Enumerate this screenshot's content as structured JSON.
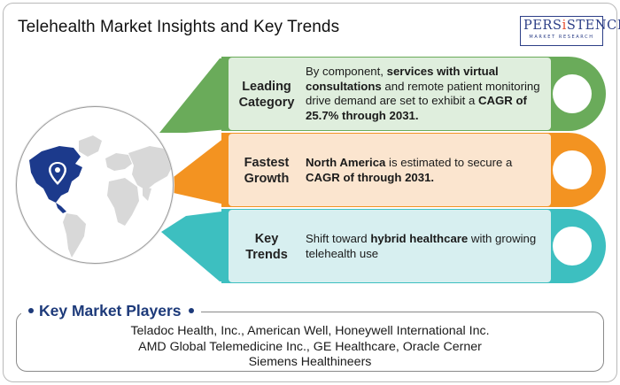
{
  "title": "Telehealth Market Insights and Key Trends",
  "logo": {
    "main_pre": "PERS",
    "main_i": "i",
    "main_post": "STENCE",
    "sub": "MARKET RESEARCH"
  },
  "colors": {
    "green": "#6aab5a",
    "green_bg": "#dfeedd",
    "orange": "#f39321",
    "orange_bg": "#fbe5cf",
    "teal": "#3dbfc0",
    "teal_bg": "#d7eff0",
    "navy": "#1d3a7a",
    "map_land": "#d8d8d8",
    "map_highlight": "#1c3a8c"
  },
  "globe": {
    "icon": "location-pin-icon",
    "highlight_region": "North America"
  },
  "sections": [
    {
      "label": "Leading Category",
      "label_line1": "Leading",
      "label_line2": "Category",
      "t1": "By component, ",
      "b1": "services with virtual consultations",
      "t2": " and remote patient monitoring drive demand are set to exhibit a ",
      "b2": "CAGR of 25.7% through 2031."
    },
    {
      "label": "Fastest Growth",
      "label_line1": "Fastest",
      "label_line2": "Growth",
      "b1": "North America",
      "t1": " is estimated to secure a ",
      "b2": "CAGR of through 2031."
    },
    {
      "label": "Key Trends",
      "label_line1": "Key",
      "label_line2": "Trends",
      "t1": "Shift toward ",
      "b1": "hybrid healthcare",
      "t2": " with growing telehealth use"
    }
  ],
  "key_players": {
    "title": "Key Market Players",
    "lines": [
      "Teladoc Health, Inc., American Well, Honeywell International Inc.",
      "AMD Global Telemedicine Inc., GE Healthcare, Oracle Cerner",
      "Siemens Healthineers"
    ]
  }
}
